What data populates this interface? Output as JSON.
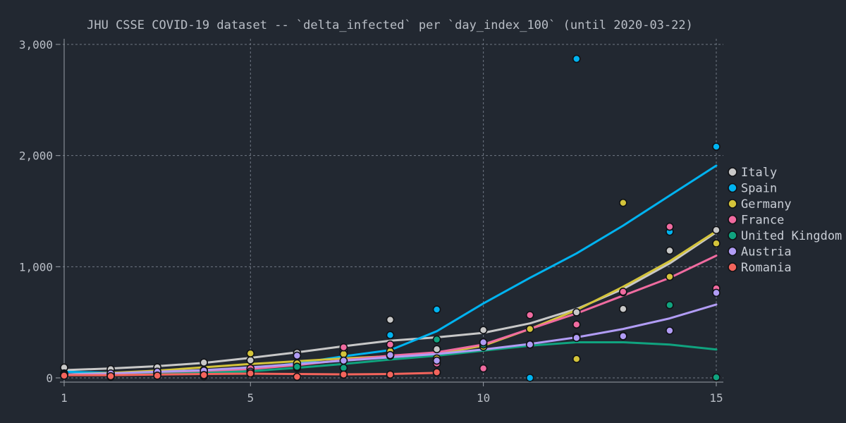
{
  "chart_data": {
    "type": "scatter",
    "title": "JHU CSSE COVID-19 dataset -- `delta_infected` per `day_index_100` (until 2020-03-22)",
    "xlabel": "",
    "ylabel": "",
    "xlim": [
      1,
      15
    ],
    "ylim": [
      0,
      3000
    ],
    "x_ticks": [
      1,
      5,
      10,
      15
    ],
    "y_ticks": [
      0,
      1000,
      2000,
      3000
    ],
    "y_tick_labels": [
      "0",
      "1,000",
      "2,000",
      "3,000"
    ],
    "grid": true,
    "legend_position": "right",
    "series": [
      {
        "name": "Italy",
        "color": "#c8c8c8",
        "points": [
          [
            1,
            93
          ],
          [
            2,
            78
          ],
          [
            3,
            95
          ],
          [
            4,
            138
          ],
          [
            5,
            158
          ],
          [
            6,
            225
          ],
          [
            7,
            240
          ],
          [
            8,
            523
          ],
          [
            9,
            258
          ],
          [
            10,
            430
          ],
          [
            11,
            302
          ],
          [
            12,
            590
          ],
          [
            13,
            620
          ],
          [
            14,
            1145
          ],
          [
            15,
            1330
          ]
        ],
        "trend": [
          [
            1,
            70
          ],
          [
            2,
            85
          ],
          [
            3,
            105
          ],
          [
            4,
            135
          ],
          [
            5,
            180
          ],
          [
            6,
            230
          ],
          [
            7,
            285
          ],
          [
            8,
            335
          ],
          [
            9,
            365
          ],
          [
            10,
            405
          ],
          [
            11,
            490
          ],
          [
            12,
            620
          ],
          [
            13,
            800
          ],
          [
            14,
            1030
          ],
          [
            15,
            1310
          ]
        ]
      },
      {
        "name": "Spain",
        "color": "#00b3f0",
        "points": [
          [
            1,
            40
          ],
          [
            2,
            30
          ],
          [
            3,
            40
          ],
          [
            4,
            55
          ],
          [
            5,
            75
          ],
          [
            6,
            115
          ],
          [
            7,
            155
          ],
          [
            8,
            385
          ],
          [
            9,
            615
          ],
          [
            10,
            320
          ],
          [
            11,
            0
          ],
          [
            12,
            2870
          ],
          [
            13,
            770
          ],
          [
            14,
            1315
          ],
          [
            15,
            2080
          ]
        ],
        "trend": [
          [
            1,
            55
          ],
          [
            2,
            45
          ],
          [
            3,
            45
          ],
          [
            4,
            55
          ],
          [
            5,
            85
          ],
          [
            6,
            130
          ],
          [
            7,
            195
          ],
          [
            8,
            250
          ],
          [
            9,
            420
          ],
          [
            10,
            670
          ],
          [
            11,
            900
          ],
          [
            12,
            1120
          ],
          [
            13,
            1370
          ],
          [
            14,
            1640
          ],
          [
            15,
            1910
          ]
        ]
      },
      {
        "name": "Germany",
        "color": "#d4c43a",
        "points": [
          [
            1,
            25
          ],
          [
            2,
            35
          ],
          [
            3,
            55
          ],
          [
            4,
            70
          ],
          [
            5,
            220
          ],
          [
            6,
            130
          ],
          [
            7,
            215
          ],
          [
            8,
            240
          ],
          [
            9,
            175
          ],
          [
            10,
            280
          ],
          [
            11,
            440
          ],
          [
            12,
            170
          ],
          [
            13,
            1575
          ],
          [
            14,
            910
          ],
          [
            15,
            1210
          ]
        ],
        "trend": [
          [
            1,
            30
          ],
          [
            2,
            45
          ],
          [
            3,
            65
          ],
          [
            4,
            95
          ],
          [
            5,
            125
          ],
          [
            6,
            150
          ],
          [
            7,
            175
          ],
          [
            8,
            195
          ],
          [
            9,
            215
          ],
          [
            10,
            290
          ],
          [
            11,
            440
          ],
          [
            12,
            610
          ],
          [
            13,
            820
          ],
          [
            14,
            1050
          ],
          [
            15,
            1320
          ]
        ]
      },
      {
        "name": "France",
        "color": "#f06ba0",
        "points": [
          [
            1,
            20
          ],
          [
            2,
            10
          ],
          [
            3,
            30
          ],
          [
            4,
            15
          ],
          [
            5,
            85
          ],
          [
            6,
            90
          ],
          [
            7,
            275
          ],
          [
            8,
            300
          ],
          [
            9,
            130
          ],
          [
            10,
            85
          ],
          [
            11,
            565
          ],
          [
            12,
            480
          ],
          [
            13,
            775
          ],
          [
            14,
            1360
          ],
          [
            15,
            805
          ]
        ],
        "trend": [
          [
            1,
            25
          ],
          [
            2,
            30
          ],
          [
            3,
            40
          ],
          [
            4,
            55
          ],
          [
            5,
            80
          ],
          [
            6,
            115
          ],
          [
            7,
            160
          ],
          [
            8,
            200
          ],
          [
            9,
            230
          ],
          [
            10,
            300
          ],
          [
            11,
            440
          ],
          [
            12,
            580
          ],
          [
            13,
            740
          ],
          [
            14,
            900
          ],
          [
            15,
            1100
          ]
        ]
      },
      {
        "name": "United Kingdom",
        "color": "#10a37f",
        "points": [
          [
            1,
            30
          ],
          [
            2,
            20
          ],
          [
            3,
            40
          ],
          [
            4,
            40
          ],
          [
            5,
            45
          ],
          [
            6,
            100
          ],
          [
            7,
            90
          ],
          [
            8,
            200
          ],
          [
            9,
            345
          ],
          [
            10,
            300
          ],
          [
            11,
            300
          ],
          [
            12,
            370
          ],
          [
            13,
            380
          ],
          [
            14,
            655
          ],
          [
            15,
            5
          ]
        ],
        "trend": [
          [
            1,
            30
          ],
          [
            2,
            30
          ],
          [
            3,
            35
          ],
          [
            4,
            45
          ],
          [
            5,
            60
          ],
          [
            6,
            90
          ],
          [
            7,
            125
          ],
          [
            8,
            165
          ],
          [
            9,
            200
          ],
          [
            10,
            245
          ],
          [
            11,
            290
          ],
          [
            12,
            320
          ],
          [
            13,
            320
          ],
          [
            14,
            300
          ],
          [
            15,
            255
          ]
        ]
      },
      {
        "name": "Austria",
        "color": "#b19cf5",
        "points": [
          [
            1,
            30
          ],
          [
            2,
            40
          ],
          [
            3,
            55
          ],
          [
            4,
            65
          ],
          [
            5,
            55
          ],
          [
            6,
            200
          ],
          [
            7,
            155
          ],
          [
            8,
            205
          ],
          [
            9,
            155
          ],
          [
            10,
            320
          ],
          [
            11,
            300
          ],
          [
            12,
            360
          ],
          [
            13,
            375
          ],
          [
            14,
            425
          ],
          [
            15,
            765
          ]
        ],
        "trend": [
          [
            1,
            30
          ],
          [
            2,
            40
          ],
          [
            3,
            55
          ],
          [
            4,
            70
          ],
          [
            5,
            95
          ],
          [
            6,
            125
          ],
          [
            7,
            155
          ],
          [
            8,
            185
          ],
          [
            9,
            215
          ],
          [
            10,
            255
          ],
          [
            11,
            305
          ],
          [
            12,
            365
          ],
          [
            13,
            440
          ],
          [
            14,
            535
          ],
          [
            15,
            660
          ]
        ]
      },
      {
        "name": "Romania",
        "color": "#f4645c",
        "points": [
          [
            1,
            20
          ],
          [
            2,
            15
          ],
          [
            3,
            20
          ],
          [
            4,
            25
          ],
          [
            5,
            40
          ],
          [
            6,
            10
          ],
          [
            7,
            30
          ],
          [
            8,
            30
          ],
          [
            9,
            50
          ]
        ],
        "trend": [
          [
            1,
            25
          ],
          [
            2,
            25
          ],
          [
            3,
            30
          ],
          [
            4,
            35
          ],
          [
            5,
            38
          ],
          [
            6,
            35
          ],
          [
            7,
            32
          ],
          [
            8,
            35
          ],
          [
            9,
            45
          ]
        ]
      }
    ]
  }
}
